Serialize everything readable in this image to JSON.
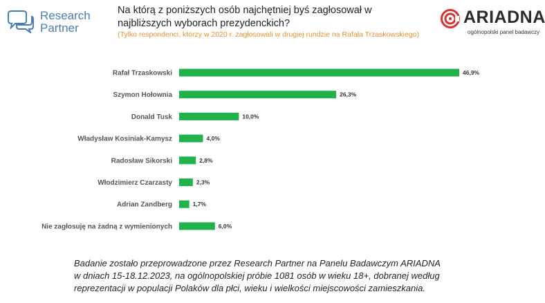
{
  "logo_left": {
    "line1": "Research",
    "line2": "Partner",
    "icon": "speech-bubbles-icon",
    "color": "#4a7cb5"
  },
  "logo_right": {
    "name": "ARIADNA",
    "tagline": "ogólnopolski panel badawczy",
    "icon": "ariadna-swirl-icon",
    "color": "#d9312b"
  },
  "title": "Na którą z poniższych osób najchętniej byś zagłosował w najbliższych wyborach prezydenckich?",
  "subtitle": "(Tylko respondenci, którzy w 2020 r. zagłosowali w drugiej rundzie na Rafała Trzaskowskiego)",
  "footnote": {
    "line1": "Badanie zostało przeprowadzone przez Research Partner na Panelu Badawczym ARIADNA",
    "line2": "w dniach 15-18.12.2023, na ogólnopolskiej próbie 1081 osób w wieku 18+, dobranej według",
    "line3": "reprezentacji w populacji Polaków dla płci, wieku i wielkości miejscowości zamieszkania."
  },
  "chart_data": {
    "type": "bar",
    "orientation": "horizontal",
    "categories": [
      "Rafał Trzaskowski",
      "Szymon Hołownia",
      "Donald Tusk",
      "Władysław Kosiniak-Kamysz",
      "Radosław Sikorski",
      "Włodzimierz Czarzasty",
      "Adrian Zandberg",
      "Nie zagłosuję na żadną z wymienionych"
    ],
    "values": [
      46.9,
      26.3,
      10.0,
      4.0,
      2.8,
      2.3,
      1.7,
      6.0
    ],
    "value_labels": [
      "46,9%",
      "26,3%",
      "10,0%",
      "4,0%",
      "2,8%",
      "2,3%",
      "1,7%",
      "6,0%"
    ],
    "bar_color": "#21b24b",
    "xlim": [
      0,
      46.9
    ],
    "grid": false,
    "legend": "none",
    "title": "",
    "xlabel": "",
    "ylabel": ""
  }
}
